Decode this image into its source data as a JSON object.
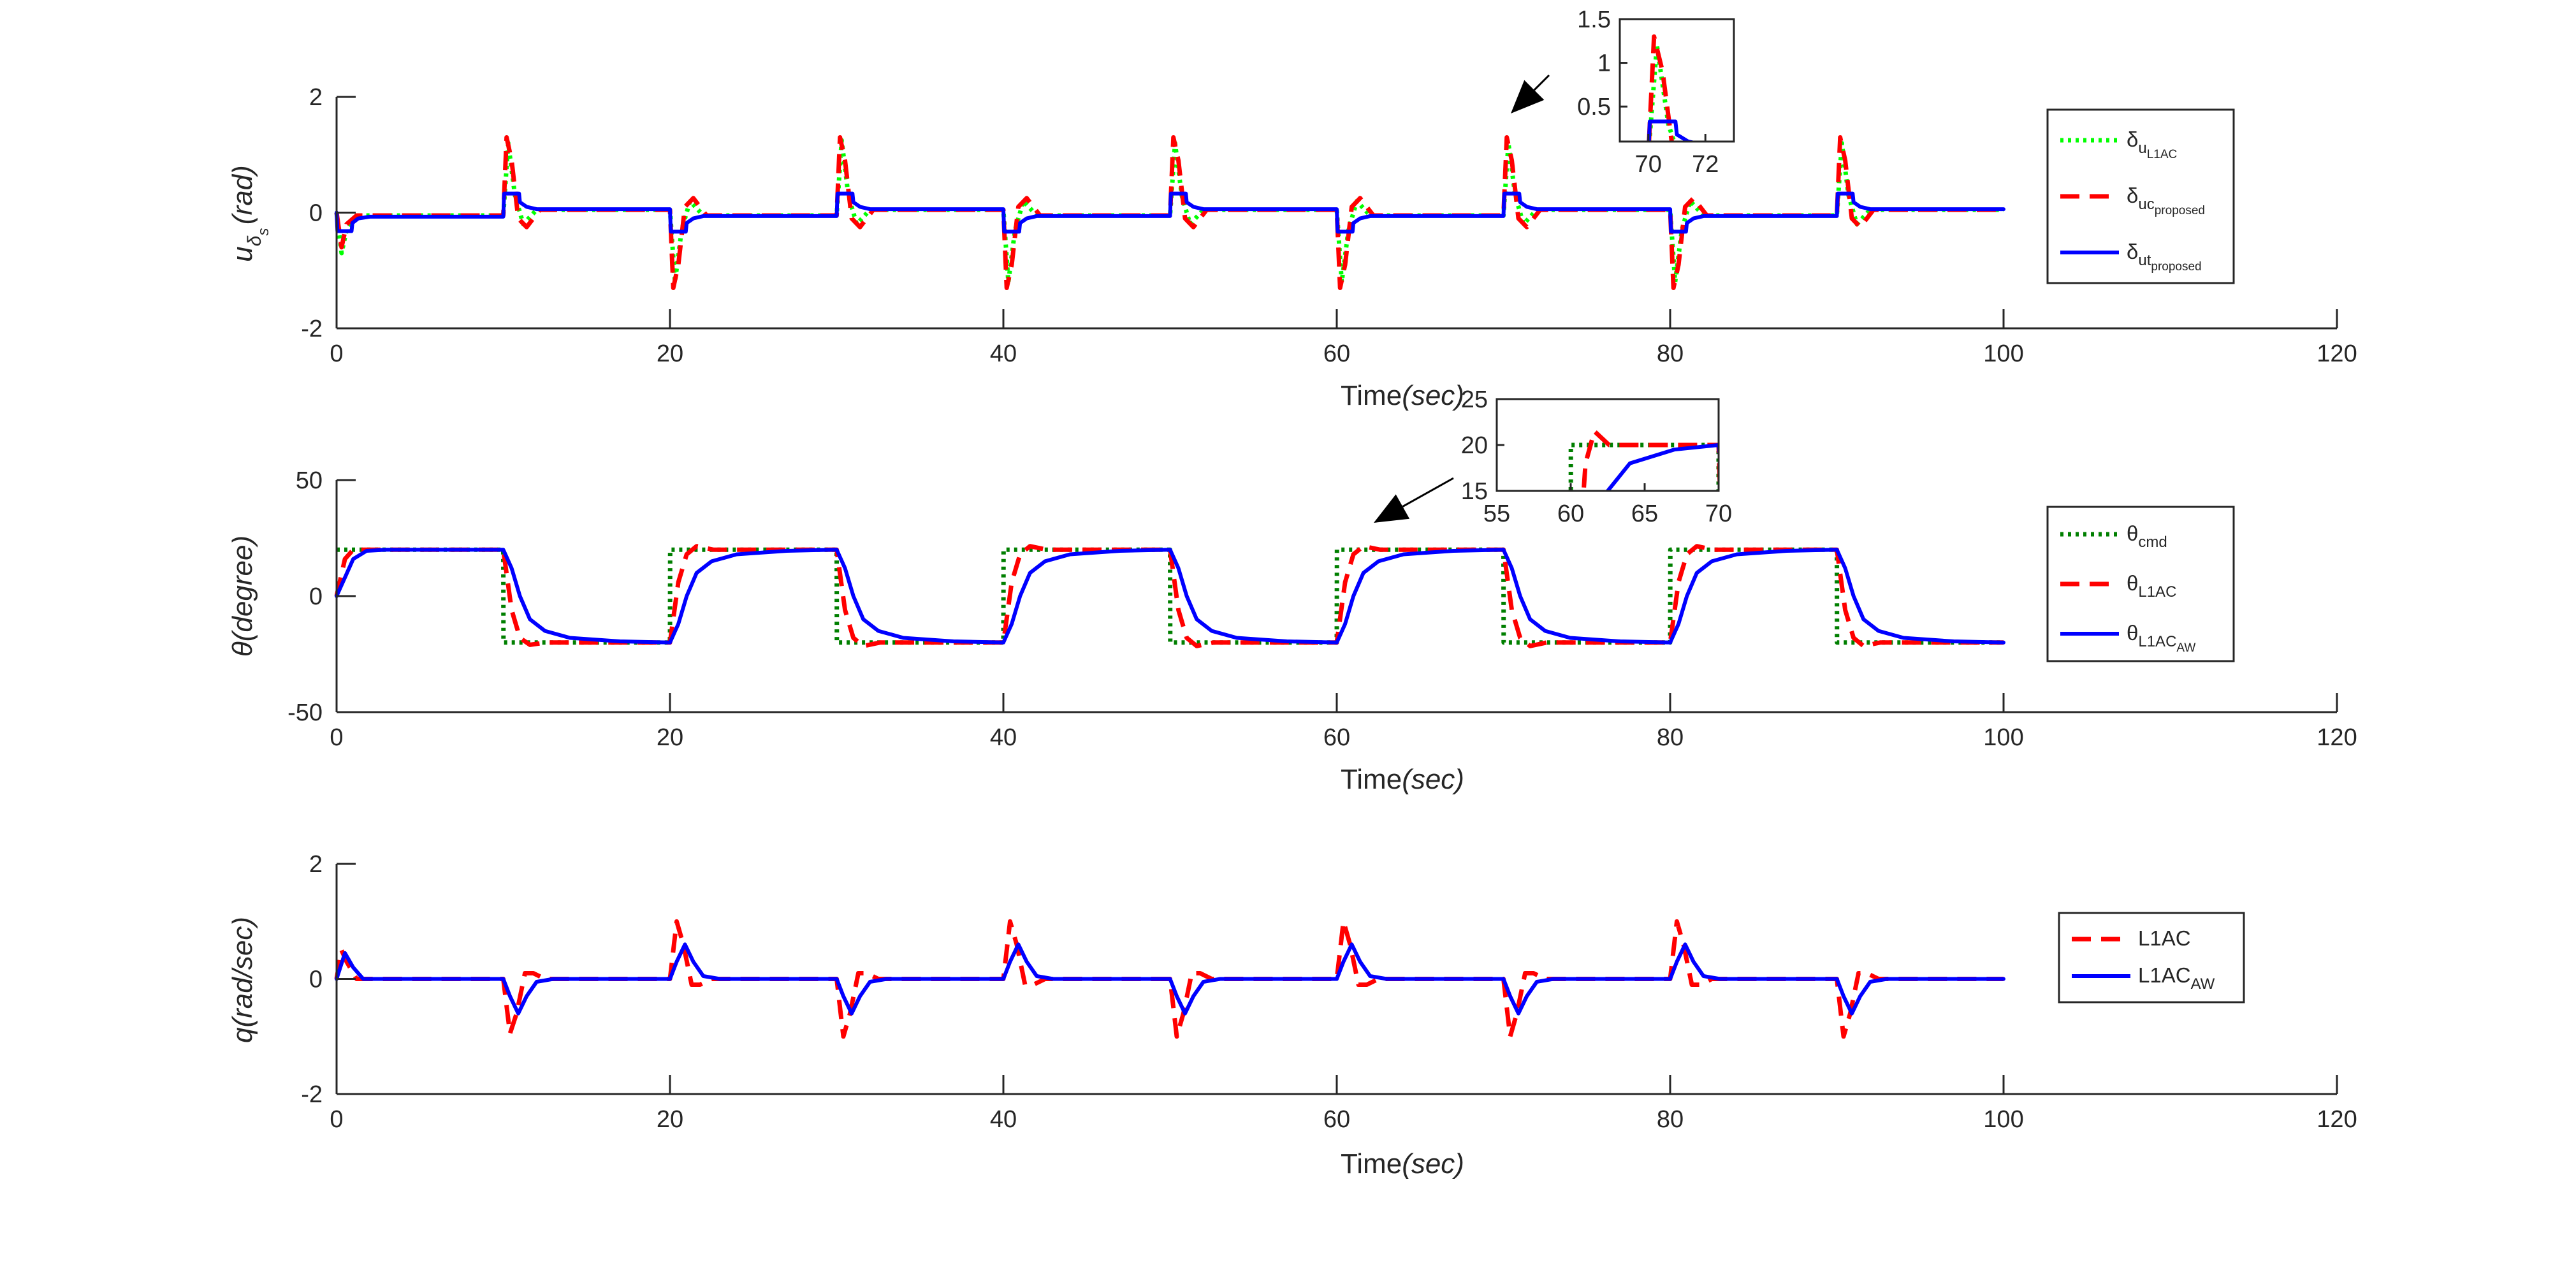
{
  "colors": {
    "u_L1AC": "#00ff00",
    "u_proposed": "#ff0000",
    "ut_proposed": "#0000ff",
    "theta_cmd": "#007f00",
    "theta_L1AC": "#ff0000",
    "theta_L1AC_AW": "#0000ff",
    "q_L1AC": "#ff0000",
    "q_L1AC_AW": "#0000ff",
    "axis": "#262626"
  },
  "chart_data": [
    {
      "type": "line",
      "panel": "control-input",
      "xlabel": "Time",
      "xlabel_unit": "(sec)",
      "ylabel_main": "u",
      "ylabel_sub1": "δ",
      "ylabel_sub2": "s",
      "ylabel_unit": "(rad)",
      "xlim": [
        0,
        120
      ],
      "ylim": [
        -2,
        2
      ],
      "xticks": [
        "0",
        "20",
        "40",
        "60",
        "80",
        "100",
        "120"
      ],
      "yticks": [
        "-2",
        "0",
        "2"
      ],
      "legend_position": "right",
      "grid": false,
      "series": [
        {
          "name": "δ",
          "name_sub": "u",
          "name_subsub": "L1AC",
          "style": "dotted",
          "x": [
            0,
            0.3,
            0.6,
            1.2,
            10,
            10.3,
            10.7,
            11.2,
            12,
            20,
            20.3,
            20.7,
            21.2,
            22,
            30,
            30.3,
            30.7,
            31.2,
            32,
            40,
            40.3,
            40.7,
            41.2,
            42,
            50,
            50.3,
            50.7,
            51.2,
            52,
            60,
            60.3,
            60.7,
            61.2,
            62,
            70,
            70.3,
            70.7,
            71.2,
            72,
            80,
            80.3,
            80.7,
            81.2,
            82,
            90,
            90.3,
            90.7,
            91.2,
            92,
            100
          ],
          "y": [
            0,
            -0.7,
            -0.3,
            -0.05,
            -0.05,
            1.2,
            0.3,
            -0.2,
            0.05,
            0.05,
            -1.2,
            -0.3,
            0.2,
            -0.05,
            -0.05,
            1.25,
            0.3,
            -0.2,
            0.05,
            0.05,
            -1.2,
            -0.3,
            0.2,
            -0.05,
            -0.05,
            1.2,
            0.3,
            -0.2,
            0.05,
            0.05,
            -1.2,
            -0.3,
            0.2,
            -0.05,
            -0.05,
            1.2,
            0.3,
            -0.2,
            0.05,
            0.05,
            -1.2,
            -0.3,
            0.2,
            -0.05,
            -0.05,
            1.2,
            0.3,
            -0.2,
            0.05,
            0.05
          ]
        },
        {
          "name": "δ",
          "name_sub": "uc",
          "name_subsub": "proposed",
          "style": "dashed",
          "x": [
            0,
            0.3,
            0.6,
            1.2,
            10,
            10.2,
            10.5,
            10.9,
            11.4,
            12.2,
            20,
            20.2,
            20.5,
            20.9,
            21.4,
            22.2,
            30,
            30.2,
            30.5,
            30.9,
            31.4,
            32.2,
            40,
            40.2,
            40.5,
            40.9,
            41.4,
            42.2,
            50,
            50.2,
            50.5,
            50.9,
            51.4,
            52.2,
            60,
            60.2,
            60.5,
            60.9,
            61.4,
            62.2,
            70,
            70.2,
            70.5,
            70.9,
            71.4,
            72.2,
            80,
            80.2,
            80.5,
            80.9,
            81.4,
            82.2,
            90,
            90.2,
            90.5,
            90.9,
            91.4,
            92.2,
            100
          ],
          "y": [
            0,
            -0.6,
            -0.2,
            -0.05,
            -0.05,
            1.3,
            0.9,
            -0.1,
            -0.25,
            0.05,
            0.05,
            -1.3,
            -0.9,
            0.1,
            0.25,
            -0.05,
            -0.05,
            1.3,
            0.9,
            -0.1,
            -0.25,
            0.05,
            0.05,
            -1.3,
            -0.9,
            0.1,
            0.25,
            -0.05,
            -0.05,
            1.3,
            0.9,
            -0.1,
            -0.25,
            0.05,
            0.05,
            -1.3,
            -0.9,
            0.1,
            0.25,
            -0.05,
            -0.05,
            1.3,
            0.9,
            -0.1,
            -0.25,
            0.05,
            0.05,
            -1.3,
            -0.9,
            0.1,
            0.25,
            -0.05,
            -0.05,
            1.3,
            0.9,
            -0.1,
            -0.25,
            0.05,
            0.05
          ]
        },
        {
          "name": "δ",
          "name_sub": "ut",
          "name_subsub": "proposed",
          "style": "solid",
          "x": [
            0,
            0.05,
            0.9,
            0.95,
            1.3,
            2.0,
            10,
            10.05,
            10.95,
            11.0,
            11.4,
            12.0,
            20,
            20.05,
            20.95,
            21.0,
            21.4,
            22.0,
            30,
            30.05,
            30.95,
            31.0,
            31.4,
            32.0,
            40,
            40.05,
            40.95,
            41.0,
            41.4,
            42.0,
            50,
            50.05,
            50.95,
            51.0,
            51.4,
            52.0,
            60,
            60.05,
            60.95,
            61.0,
            61.4,
            62.0,
            70,
            70.05,
            70.95,
            71.0,
            71.4,
            72.0,
            80,
            80.05,
            80.95,
            81.0,
            81.4,
            82.0,
            90,
            90.05,
            90.95,
            91.0,
            91.4,
            92.0,
            100
          ],
          "y": [
            0,
            -0.32,
            -0.32,
            -0.18,
            -0.1,
            -0.07,
            -0.07,
            0.33,
            0.33,
            0.18,
            0.1,
            0.06,
            0.06,
            -0.33,
            -0.33,
            -0.18,
            -0.1,
            -0.06,
            -0.06,
            0.33,
            0.33,
            0.18,
            0.1,
            0.06,
            0.06,
            -0.33,
            -0.33,
            -0.18,
            -0.1,
            -0.06,
            -0.06,
            0.33,
            0.33,
            0.18,
            0.1,
            0.06,
            0.06,
            -0.33,
            -0.33,
            -0.18,
            -0.1,
            -0.06,
            -0.06,
            0.33,
            0.33,
            0.18,
            0.1,
            0.06,
            0.06,
            -0.33,
            -0.33,
            -0.18,
            -0.1,
            -0.06,
            -0.06,
            0.33,
            0.33,
            0.18,
            0.1,
            0.06,
            0.06
          ]
        }
      ],
      "inset": {
        "xlim": [
          69,
          73
        ],
        "ylim": [
          0.1,
          1.5
        ],
        "xticks": [
          "70",
          "72"
        ],
        "yticks": [
          "0.5",
          "1",
          "1.5"
        ]
      }
    },
    {
      "type": "line",
      "panel": "pitch-angle",
      "xlabel": "Time",
      "xlabel_unit": "(sec)",
      "ylabel_main": "θ",
      "ylabel_unit": "(degree)",
      "xlim": [
        0,
        120
      ],
      "ylim": [
        -50,
        50
      ],
      "xticks": [
        "0",
        "20",
        "40",
        "60",
        "80",
        "100",
        "120"
      ],
      "yticks": [
        "-50",
        "0",
        "50"
      ],
      "legend_position": "right",
      "grid": false,
      "series": [
        {
          "name": "θ",
          "name_sub": "cmd",
          "style": "dotted",
          "x": [
            0,
            0.01,
            10,
            10.01,
            20,
            20.01,
            30,
            30.01,
            40,
            40.01,
            50,
            50.01,
            60,
            60.01,
            70,
            70.01,
            80,
            80.01,
            90,
            90.01,
            100
          ],
          "y": [
            20,
            20,
            20,
            -20,
            -20,
            20,
            20,
            -20,
            -20,
            20,
            20,
            -20,
            -20,
            20,
            20,
            -20,
            -20,
            20,
            20,
            -20,
            -20
          ]
        },
        {
          "name": "θ",
          "name_sub": "L1AC",
          "style": "dashed",
          "x": [
            0,
            0.5,
            1.0,
            1.6,
            2.5,
            10,
            10.5,
            11.0,
            11.6,
            12.6,
            20,
            20.5,
            21.0,
            21.6,
            22.6,
            30,
            30.5,
            31.0,
            31.6,
            32.6,
            40,
            40.5,
            41.0,
            41.6,
            42.6,
            50,
            50.5,
            51.0,
            51.6,
            52.6,
            60,
            60.5,
            61.0,
            61.6,
            62.6,
            70,
            70.5,
            71.0,
            71.6,
            72.6,
            80,
            80.5,
            81.0,
            81.6,
            82.6,
            90,
            90.5,
            91.0,
            91.6,
            92.6,
            100
          ],
          "y": [
            0,
            16,
            20,
            20,
            20,
            20,
            -6,
            -18,
            -21,
            -20,
            -20,
            6,
            18,
            21.5,
            20,
            20,
            -6,
            -18,
            -21.5,
            -20,
            -20,
            6,
            18,
            21.5,
            20,
            20,
            -6,
            -18,
            -21.5,
            -20,
            -20,
            6,
            18,
            21.5,
            20,
            20,
            -6,
            -18,
            -21.5,
            -20,
            -20,
            6,
            18,
            21.5,
            20,
            20,
            -6,
            -18,
            -21.5,
            -20,
            -20
          ]
        },
        {
          "name": "θ",
          "name_sub": "L1AC",
          "name_subsub": "AW",
          "style": "solid",
          "x": [
            0,
            0.5,
            1.0,
            1.8,
            3.0,
            10,
            10.5,
            11.0,
            11.6,
            12.5,
            14.0,
            17.0,
            20,
            20.5,
            21.0,
            21.6,
            22.5,
            24.0,
            27.0,
            30,
            30.5,
            31.0,
            31.6,
            32.5,
            34.0,
            37.0,
            40,
            40.5,
            41.0,
            41.6,
            42.5,
            44.0,
            47.0,
            50,
            50.5,
            51.0,
            51.6,
            52.5,
            54.0,
            57.0,
            60,
            60.5,
            61.0,
            61.6,
            62.5,
            64.0,
            67.0,
            70,
            70.5,
            71.0,
            71.6,
            72.5,
            74.0,
            77.0,
            80,
            80.5,
            81.0,
            81.6,
            82.5,
            84.0,
            87.0,
            90,
            90.5,
            91.0,
            91.6,
            92.5,
            94.0,
            97.0,
            100
          ],
          "y": [
            0,
            8,
            16,
            19.5,
            20,
            20,
            12,
            0,
            -10,
            -15,
            -18,
            -19.5,
            -20,
            -12,
            0,
            10,
            15,
            18,
            19.5,
            20,
            12,
            0,
            -10,
            -15,
            -18,
            -19.5,
            -20,
            -12,
            0,
            10,
            15,
            18,
            19.5,
            20,
            12,
            0,
            -10,
            -15,
            -18,
            -19.5,
            -20,
            -12,
            0,
            10,
            15,
            18,
            19.5,
            20,
            12,
            0,
            -10,
            -15,
            -18,
            -19.5,
            -20,
            -12,
            0,
            10,
            15,
            18,
            19.5,
            20,
            12,
            0,
            -10,
            -15,
            -18,
            -19.5,
            -20
          ]
        }
      ],
      "inset": {
        "xlim": [
          55,
          70
        ],
        "ylim": [
          15,
          25
        ],
        "xticks": [
          "55",
          "60",
          "65",
          "70"
        ],
        "yticks": [
          "15",
          "20",
          "25"
        ]
      }
    },
    {
      "type": "line",
      "panel": "pitch-rate",
      "xlabel": "Time",
      "xlabel_unit": "(sec)",
      "ylabel_main": "q",
      "ylabel_unit": "(rad/sec)",
      "xlim": [
        0,
        120
      ],
      "ylim": [
        -2,
        2
      ],
      "xticks": [
        "0",
        "20",
        "40",
        "60",
        "80",
        "100",
        "120"
      ],
      "yticks": [
        "-2",
        "0",
        "2"
      ],
      "legend_position": "right",
      "grid": false,
      "series": [
        {
          "name": "L1AC",
          "style": "dashed",
          "x": [
            0,
            0.3,
            0.6,
            1.2,
            2,
            10,
            10.4,
            10.8,
            11.3,
            11.8,
            12.5,
            20,
            20.4,
            20.8,
            21.3,
            21.8,
            22.5,
            30,
            30.4,
            30.8,
            31.3,
            31.8,
            32.5,
            40,
            40.4,
            40.8,
            41.3,
            41.8,
            42.5,
            50,
            50.4,
            50.8,
            51.3,
            51.8,
            52.5,
            60,
            60.4,
            60.8,
            61.3,
            61.8,
            62.5,
            70,
            70.4,
            70.8,
            71.3,
            71.8,
            72.5,
            80,
            80.4,
            80.8,
            81.3,
            81.8,
            82.5,
            90,
            90.4,
            90.8,
            91.3,
            91.8,
            92.5,
            100
          ],
          "y": [
            0,
            0.5,
            0.3,
            0,
            0,
            0,
            -0.95,
            -0.6,
            0.1,
            0.1,
            0,
            0,
            1.0,
            0.6,
            -0.1,
            -0.1,
            0,
            0,
            -1.0,
            -0.6,
            0.1,
            0.1,
            0,
            0,
            1.0,
            0.6,
            -0.1,
            -0.1,
            0,
            0,
            -1.0,
            -0.6,
            0.1,
            0.1,
            0,
            0,
            1.0,
            0.6,
            -0.1,
            -0.1,
            0,
            0,
            -1.0,
            -0.6,
            0.1,
            0.1,
            0,
            0,
            1.0,
            0.6,
            -0.1,
            -0.1,
            0,
            0,
            -1.0,
            -0.6,
            0.1,
            0.1,
            0,
            0
          ]
        },
        {
          "name": "L1AC",
          "name_sub": "AW",
          "style": "solid",
          "x": [
            0,
            0.5,
            1.0,
            1.6,
            2.5,
            10,
            10.4,
            10.9,
            11.4,
            12.0,
            13.0,
            20,
            20.4,
            20.9,
            21.4,
            22.0,
            23.0,
            30,
            30.4,
            30.9,
            31.4,
            32.0,
            33.0,
            40,
            40.4,
            40.9,
            41.4,
            42.0,
            43.0,
            50,
            50.4,
            50.9,
            51.4,
            52.0,
            53.0,
            60,
            60.4,
            60.9,
            61.4,
            62.0,
            63.0,
            70,
            70.4,
            70.9,
            71.4,
            72.0,
            73.0,
            80,
            80.4,
            80.9,
            81.4,
            82.0,
            83.0,
            90,
            90.4,
            90.9,
            91.4,
            92.0,
            93.0,
            100
          ],
          "y": [
            0,
            0.45,
            0.2,
            0,
            0,
            0,
            -0.3,
            -0.6,
            -0.3,
            -0.05,
            0,
            0,
            0.3,
            0.6,
            0.3,
            0.05,
            0,
            0,
            -0.3,
            -0.6,
            -0.3,
            -0.05,
            0,
            0,
            0.3,
            0.6,
            0.3,
            0.05,
            0,
            0,
            -0.3,
            -0.6,
            -0.3,
            -0.05,
            0,
            0,
            0.3,
            0.6,
            0.3,
            0.05,
            0,
            0,
            -0.3,
            -0.6,
            -0.3,
            -0.05,
            0,
            0,
            0.3,
            0.6,
            0.3,
            0.05,
            0,
            0,
            -0.3,
            -0.6,
            -0.3,
            -0.05,
            0,
            0
          ]
        }
      ]
    }
  ]
}
